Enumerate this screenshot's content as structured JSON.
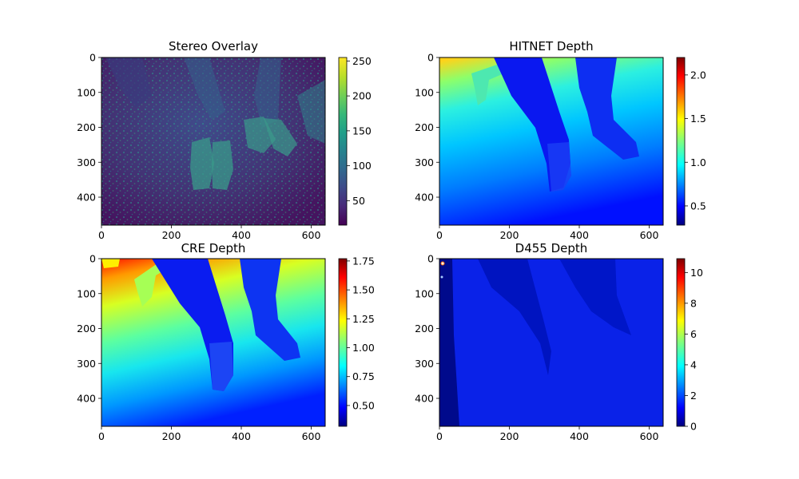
{
  "chart_data": [
    {
      "type": "heatmap",
      "title": "Stereo Overlay",
      "xlabel": "",
      "ylabel": "",
      "xlim": [
        0,
        640
      ],
      "ylim": [
        480,
        0
      ],
      "xticks": [
        "0",
        "200",
        "400",
        "600"
      ],
      "yticks": [
        "0",
        "100",
        "200",
        "300",
        "400"
      ],
      "colormap": "viridis",
      "colorbar_range": [
        15,
        255
      ],
      "colorbar_ticks": [
        "50",
        "100",
        "150",
        "200",
        "250"
      ]
    },
    {
      "type": "heatmap",
      "title": "HITNET Depth",
      "xlabel": "",
      "ylabel": "",
      "xlim": [
        0,
        640
      ],
      "ylim": [
        480,
        0
      ],
      "xticks": [
        "0",
        "200",
        "400",
        "600"
      ],
      "yticks": [
        "0",
        "100",
        "200",
        "300",
        "400"
      ],
      "colormap": "jet",
      "colorbar_range": [
        0.28,
        2.2
      ],
      "colorbar_ticks": [
        "0.5",
        "1.0",
        "1.5",
        "2.0"
      ]
    },
    {
      "type": "heatmap",
      "title": "CRE Depth",
      "xlabel": "",
      "ylabel": "",
      "xlim": [
        0,
        640
      ],
      "ylim": [
        480,
        0
      ],
      "xticks": [
        "0",
        "200",
        "400",
        "600"
      ],
      "yticks": [
        "0",
        "100",
        "200",
        "300",
        "400"
      ],
      "colormap": "jet",
      "colorbar_range": [
        0.32,
        1.77
      ],
      "colorbar_ticks": [
        "0.50",
        "0.75",
        "1.00",
        "1.25",
        "1.50",
        "1.75"
      ]
    },
    {
      "type": "heatmap",
      "title": "D455 Depth",
      "xlabel": "",
      "ylabel": "",
      "xlim": [
        0,
        640
      ],
      "ylim": [
        480,
        0
      ],
      "xticks": [
        "0",
        "200",
        "400",
        "600"
      ],
      "yticks": [
        "0",
        "100",
        "200",
        "300",
        "400"
      ],
      "colormap": "jet",
      "colorbar_range": [
        0,
        10.9
      ],
      "colorbar_ticks": [
        "0",
        "2",
        "4",
        "6",
        "8",
        "10"
      ]
    }
  ],
  "colors": {
    "viridis": [
      "#440154",
      "#482878",
      "#3e4989",
      "#31688e",
      "#26828e",
      "#1f9e89",
      "#35b779",
      "#6ece58",
      "#b5de2b",
      "#fde725"
    ],
    "jet": [
      "#00007f",
      "#0000ff",
      "#007fff",
      "#00ffff",
      "#7fff7f",
      "#ffff00",
      "#ff7f00",
      "#ff0000",
      "#7f0000"
    ]
  }
}
